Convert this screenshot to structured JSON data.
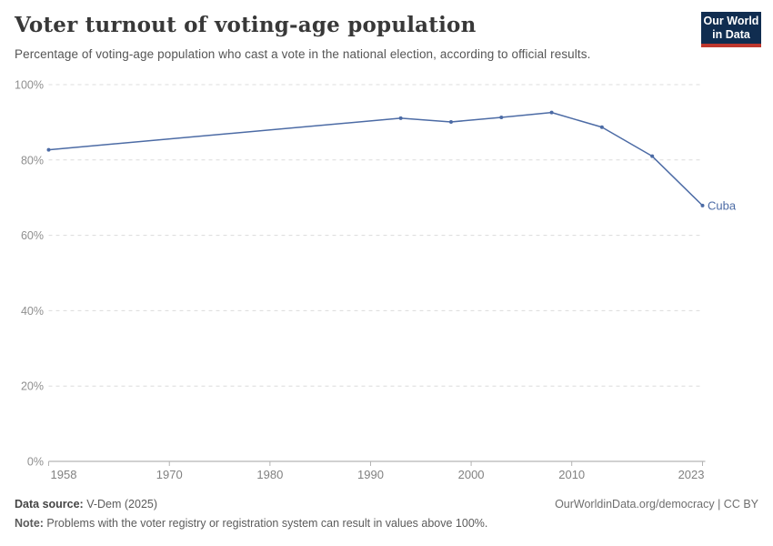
{
  "header": {
    "title": "Voter turnout of voting-age population",
    "subtitle": "Percentage of voting-age population who cast a vote in the national election, according to official results.",
    "logo": {
      "line1": "Our World",
      "line2": "in Data",
      "bg_color": "#102D50",
      "accent_color": "#BE372D"
    }
  },
  "chart_data": {
    "type": "line",
    "title": "Voter turnout of voting-age population",
    "series": [
      {
        "name": "Cuba",
        "color": "#4C6BA5",
        "x": [
          1958,
          1993,
          1998,
          2003,
          2008,
          2013,
          2018,
          2023
        ],
        "values": [
          82.7,
          91.1,
          90.1,
          91.3,
          92.6,
          88.7,
          81.0,
          67.9
        ]
      }
    ],
    "xlabel": "",
    "ylabel": "",
    "xlim": [
      1958,
      2023
    ],
    "ylim": [
      0,
      100
    ],
    "x_ticks": [
      1958,
      1970,
      1980,
      1990,
      2000,
      2010,
      2023
    ],
    "y_ticks": [
      0,
      20,
      40,
      60,
      80,
      100
    ],
    "y_tick_suffix": "%",
    "grid": true,
    "legend": "end-of-line entity label",
    "colors": {
      "gridline": "#dcdcdc",
      "axis": "#a3a3a3",
      "tick": "#b3b3b3",
      "y_label": "#8f8f8f",
      "x_label": "#818181"
    }
  },
  "footer": {
    "source_label": "Data source:",
    "source_value": " V-Dem (2025)",
    "link": "OurWorldinData.org/democracy | CC BY",
    "note_label": "Note:",
    "note_value": " Problems with the voter registry or registration system can result in values above 100%."
  }
}
